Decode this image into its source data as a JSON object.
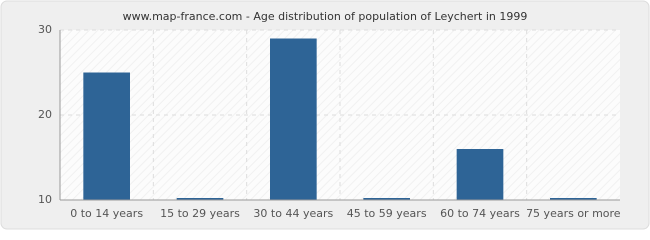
{
  "chart_data": {
    "type": "bar",
    "title": "www.map-france.com - Age distribution of population of Leychert in 1999",
    "categories": [
      "0 to 14 years",
      "15 to 29 years",
      "30 to 44 years",
      "45 to 59 years",
      "60 to 74 years",
      "75 years or more"
    ],
    "values": [
      25,
      10,
      29,
      10,
      16,
      10
    ],
    "color": "#2e6496",
    "ylim": [
      10,
      30
    ],
    "yticks": [
      10,
      20,
      30
    ],
    "grid": true
  }
}
